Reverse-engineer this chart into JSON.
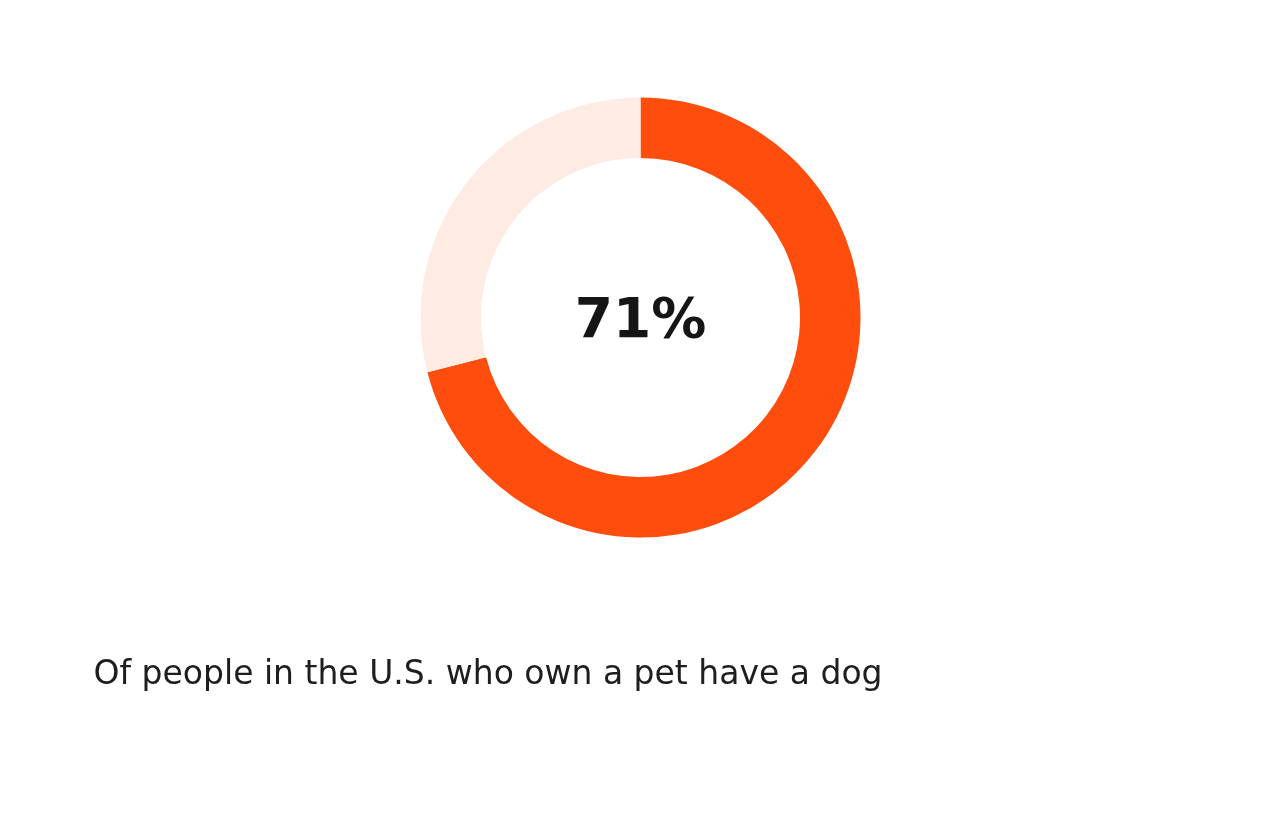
{
  "chart_data": {
    "type": "donut",
    "categories": [
      null,
      null
    ],
    "values": [
      71,
      29
    ],
    "colors": [
      "#ff4d0d",
      "#fdebe4"
    ],
    "annotations": [
      "71%",
      "Of people in the U.S. who own a pet have a dog"
    ]
  }
}
